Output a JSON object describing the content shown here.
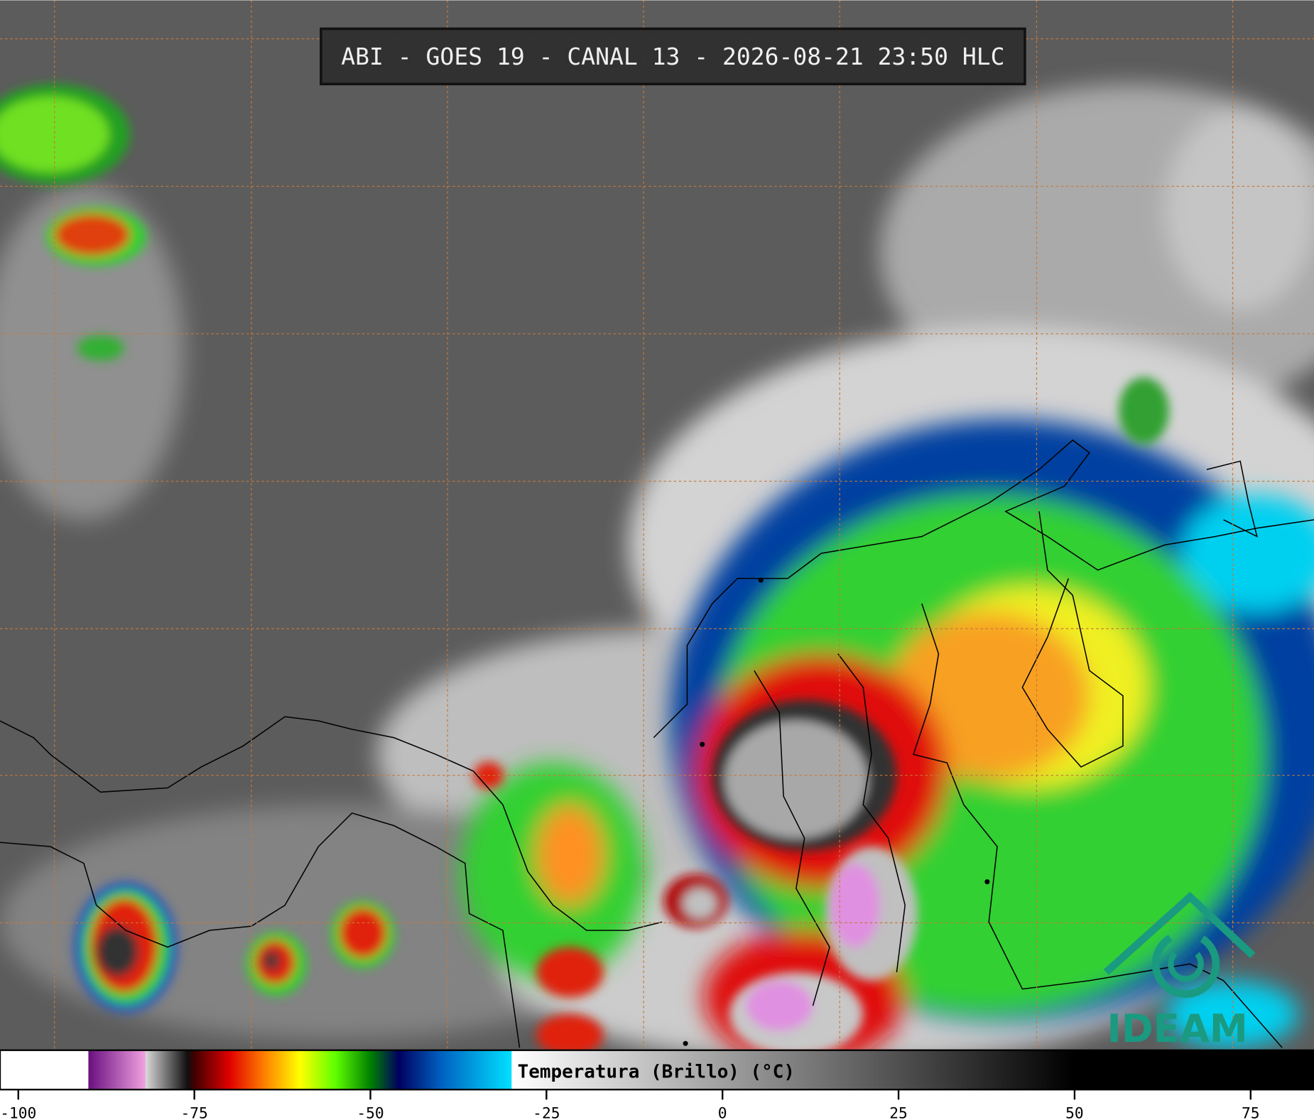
{
  "header": {
    "title": "ABI - GOES 19 - CANAL 13 - 2026-08-21 23:50 HLC"
  },
  "colorbar": {
    "label": "Temperatura (Brillo) (°C)",
    "xlim": [
      -102.6,
      84
    ],
    "xticks": [
      -100,
      -75,
      -50,
      -25,
      0,
      25,
      50,
      75
    ],
    "stops": [
      {
        "value": -102.6,
        "color": "#ffffff"
      },
      {
        "value": -90.1,
        "color": "#ffffff"
      },
      {
        "value": -90,
        "color": "#6a1080"
      },
      {
        "value": -82,
        "color": "#f0a0e0"
      },
      {
        "value": -81.9,
        "color": "#d8d8d8"
      },
      {
        "value": -76,
        "color": "#101010"
      },
      {
        "value": -75,
        "color": "#400000"
      },
      {
        "value": -70,
        "color": "#e00000"
      },
      {
        "value": -65,
        "color": "#ff8000"
      },
      {
        "value": -60,
        "color": "#ffff00"
      },
      {
        "value": -55,
        "color": "#60ff00"
      },
      {
        "value": -50,
        "color": "#008000"
      },
      {
        "value": -46,
        "color": "#000060"
      },
      {
        "value": -40,
        "color": "#0060c0"
      },
      {
        "value": -30,
        "color": "#00e0ff"
      },
      {
        "value": -29.9,
        "color": "#ffffff"
      },
      {
        "value": 50,
        "color": "#000000"
      },
      {
        "value": 84,
        "color": "#000000"
      }
    ]
  },
  "logo": {
    "text": "IDEAM"
  }
}
